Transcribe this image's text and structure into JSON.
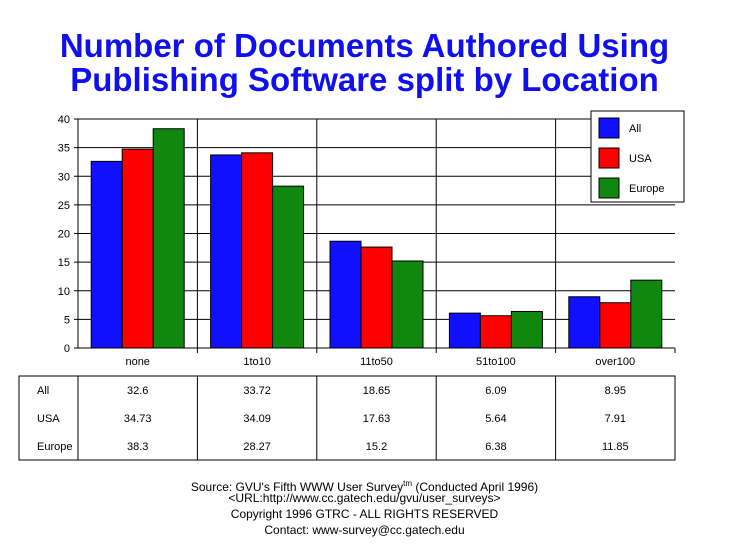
{
  "title_line1": "Number of Documents Authored Using",
  "title_line2": "Publishing Software split by Location",
  "footer": {
    "source_prefix": "Source: GVU's Fifth WWW User Survey",
    "source_tm": "tm",
    "source_suffix": "  (Conducted April 1996)",
    "url": "<URL:http://www.cc.gatech.edu/gvu/user_surveys>",
    "copyright": "Copyright 1996 GTRC -  ALL RIGHTS RESERVED",
    "contact": "Contact: www-survey@cc.gatech.edu"
  },
  "chart_data": {
    "type": "bar",
    "title": "Number of Documents Authored Using Publishing Software split by Location",
    "categories": [
      "none",
      "1to10",
      "11to50",
      "51to100",
      "over100"
    ],
    "series": [
      {
        "name": "All",
        "color": "#1010ff",
        "values": [
          32.6,
          33.72,
          18.65,
          6.09,
          8.95
        ],
        "labels": [
          "32.6",
          "33.72",
          "18.65",
          "6.09",
          "8.95"
        ]
      },
      {
        "name": "USA",
        "color": "#ff0000",
        "values": [
          34.73,
          34.09,
          17.63,
          5.64,
          7.91
        ],
        "labels": [
          "34.73",
          "34.09",
          "17.63",
          "5.64",
          "7.91"
        ]
      },
      {
        "name": "Europe",
        "color": "#108810",
        "values": [
          38.3,
          28.27,
          15.2,
          6.38,
          11.85
        ],
        "labels": [
          "38.3",
          "28.27",
          "15.2",
          "6.38",
          "11.85"
        ]
      }
    ],
    "ylim": [
      0,
      40
    ],
    "yticks": [
      "0",
      "5",
      "10",
      "15",
      "20",
      "25",
      "30",
      "35",
      "40"
    ],
    "grid": true,
    "legend_position": "top-right",
    "has_data_table": true
  }
}
